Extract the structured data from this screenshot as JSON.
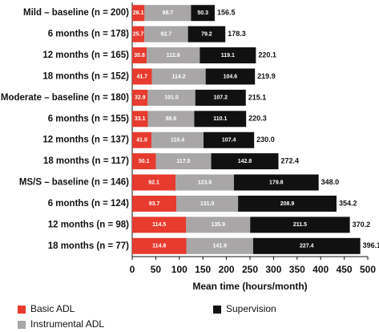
{
  "chart_data": {
    "type": "stacked-barh",
    "categories": [
      "Mild – baseline (n = 200)",
      "6 months (n = 178)",
      "12 months (n = 165)",
      "18 months (n = 152)",
      "Moderate – baseline (n = 180)",
      "6 months (n = 155)",
      "12 months (n = 137)",
      "18 months (n = 117)",
      "MS/S – baseline (n = 146)",
      "6 months (n = 124)",
      "12 months (n = 98)",
      "18 months (n = 77)"
    ],
    "series": [
      {
        "name": "Basic ADL",
        "color": "#e63b2e",
        "values": [
          26.1,
          25.7,
          30.8,
          41.7,
          32.9,
          33.1,
          41.0,
          50.1,
          92.1,
          93.7,
          114.5,
          114.8
        ],
        "value_labels": [
          "26.1",
          "25.7",
          "30.8",
          "41.7",
          "32.9",
          "33.1",
          "41.0",
          "50.1",
          "92.1",
          "93.7",
          "114.5",
          "114.8"
        ]
      },
      {
        "name": "Instrumental ADL",
        "color": "#a8a6a6",
        "values": [
          98.7,
          92.7,
          112.6,
          114.2,
          101.0,
          98.6,
          110.4,
          117.5,
          123.8,
          131.0,
          135.9,
          141.9
        ],
        "value_labels": [
          "98.7",
          "92.7",
          "112.6",
          "114.2",
          "101.0",
          "98.6",
          "110.4",
          "117.5",
          "123.8",
          "131.0",
          "135.9",
          "141.9"
        ]
      },
      {
        "name": "Supervision",
        "color": "#111111",
        "values": [
          50.3,
          79.2,
          119.1,
          104.6,
          107.2,
          110.1,
          107.4,
          142.8,
          179.8,
          208.9,
          211.5,
          227.4
        ],
        "value_labels": [
          "50.3",
          "79.2",
          "119.1",
          "104.6",
          "107.2",
          "110.1",
          "107.4",
          "142.8",
          "179.8",
          "208.9",
          "211.5",
          "227.4"
        ]
      }
    ],
    "totals": {
      "values": [
        156.5,
        178.3,
        220.1,
        219.9,
        215.1,
        220.3,
        230.0,
        272.4,
        348.0,
        354.2,
        370.2,
        396.1
      ],
      "value_labels": [
        "156.5",
        "178.3",
        "220.1",
        "219.9",
        "215.1",
        "220.3",
        "230.0",
        "272.4",
        "348.0",
        "354.2",
        "370.2",
        "396.1"
      ]
    },
    "xlabel": "Mean time (hours/month)",
    "xlim": [
      0,
      500
    ],
    "xticks": [
      0,
      50,
      100,
      150,
      200,
      250,
      300,
      350,
      400,
      450,
      500
    ],
    "legend": "bottom"
  }
}
